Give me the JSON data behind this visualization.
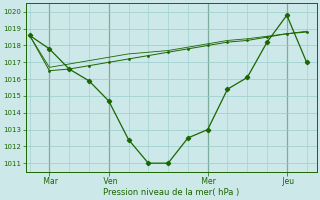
{
  "background_color": "#cce8e8",
  "grid_color": "#99cccc",
  "line_color": "#1a6600",
  "vline_color": "#336633",
  "xlabel": "Pression niveau de la mer( hPa )",
  "ylim": [
    1010.5,
    1020.5
  ],
  "yticks": [
    1011,
    1012,
    1013,
    1014,
    1015,
    1016,
    1017,
    1018,
    1019,
    1020
  ],
  "xtick_labels": [
    " Mar",
    " Ven",
    " Mer",
    " Jeu"
  ],
  "xtick_positions": [
    1,
    4,
    9,
    13
  ],
  "xlim": [
    -0.2,
    14.5
  ],
  "line1_x": [
    0,
    1,
    2,
    3,
    4,
    5,
    6,
    7,
    8,
    9,
    10,
    11,
    12,
    13,
    14
  ],
  "line1_y": [
    1018.6,
    1017.8,
    1016.6,
    1015.9,
    1014.7,
    1012.4,
    1011.0,
    1011.0,
    1012.5,
    1013.0,
    1015.4,
    1016.1,
    1018.2,
    1019.8,
    1017.0
  ],
  "line2_x": [
    0,
    1,
    2,
    3,
    4,
    5,
    6,
    7,
    8,
    9,
    10,
    11,
    12,
    13,
    14
  ],
  "line2_y": [
    1018.6,
    1016.5,
    1016.6,
    1016.8,
    1017.0,
    1017.2,
    1017.4,
    1017.6,
    1017.8,
    1018.0,
    1018.2,
    1018.3,
    1018.5,
    1018.7,
    1018.8
  ],
  "line3_x": [
    0,
    1,
    2,
    3,
    4,
    5,
    6,
    7,
    8,
    9,
    10,
    11,
    12,
    13,
    14
  ],
  "line3_y": [
    1018.6,
    1016.7,
    1016.9,
    1017.1,
    1017.3,
    1017.5,
    1017.6,
    1017.7,
    1017.9,
    1018.1,
    1018.3,
    1018.4,
    1018.55,
    1018.7,
    1018.85
  ],
  "vlines_x": [
    1,
    4,
    9,
    13
  ]
}
